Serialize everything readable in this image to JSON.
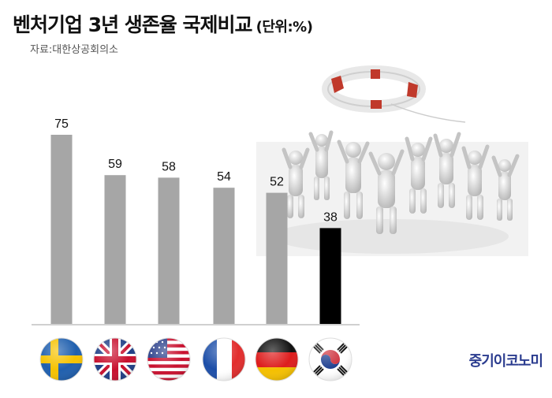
{
  "title": "벤처기업 3년 생존율 국제비교",
  "unit_label": "(단위:%)",
  "source": "자료:대한상공회의소",
  "brand": "중기이코노미",
  "chart_data": {
    "type": "bar",
    "title": "벤처기업 3년 생존율 국제비교",
    "categories": [
      "sweden",
      "uk",
      "usa",
      "france",
      "germany",
      "korea"
    ],
    "values": [
      75,
      59,
      58,
      54,
      52,
      38
    ],
    "value_labels": [
      "75",
      "59",
      "58",
      "54",
      "52",
      "38"
    ],
    "colors": [
      "#a6a6a6",
      "#a6a6a6",
      "#a6a6a6",
      "#a6a6a6",
      "#a6a6a6",
      "#000000"
    ],
    "ylim": [
      0,
      100
    ],
    "grid": false,
    "legend": "none"
  },
  "flags": [
    "sweden-flag-icon",
    "uk-flag-icon",
    "usa-flag-icon",
    "france-flag-icon",
    "germany-flag-icon",
    "korea-flag-icon"
  ]
}
